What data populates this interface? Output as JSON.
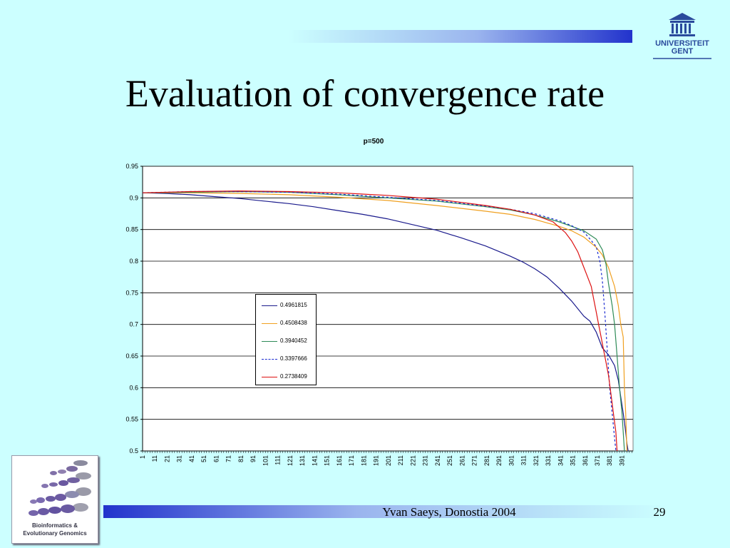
{
  "slide": {
    "title": "Evaluation of convergence rate",
    "footer": "Yvan Saeys, Donostia 2004",
    "page_number": "29"
  },
  "logos": {
    "university": "UNIVERSITEIT GENT",
    "group_line1": "Bioinformatics &",
    "group_line2": "Evolutionary Genomics"
  },
  "colors": {
    "background": "#ccffff",
    "bar_dark": "#2233cc"
  },
  "chart_data": {
    "type": "line",
    "title": "p=500",
    "xlabel": "",
    "ylabel": "",
    "ylim": [
      0.5,
      0.95
    ],
    "yticks": [
      "0.95",
      "0.9",
      "0.85",
      "0.8",
      "0.75",
      "0.7",
      "0.65",
      "0.6",
      "0.55",
      "0.5"
    ],
    "x_range": [
      1,
      400
    ],
    "xticks": [
      "1",
      "11",
      "21",
      "31",
      "41",
      "51",
      "61",
      "71",
      "81",
      "91",
      "101",
      "111",
      "121",
      "131",
      "141",
      "151",
      "161",
      "171",
      "181",
      "191",
      "201",
      "211",
      "221",
      "231",
      "241",
      "251",
      "261",
      "271",
      "281",
      "291",
      "301",
      "311",
      "321",
      "331",
      "341",
      "351",
      "361",
      "371",
      "381",
      "391"
    ],
    "grid": "horizontal",
    "legend_position": "inside-center-left",
    "series": [
      {
        "name": "0.4961815",
        "color": "#1a1a8c",
        "style": "solid",
        "points": [
          [
            1,
            0.908
          ],
          [
            20,
            0.907
          ],
          [
            40,
            0.905
          ],
          [
            60,
            0.902
          ],
          [
            80,
            0.899
          ],
          [
            100,
            0.895
          ],
          [
            120,
            0.891
          ],
          [
            140,
            0.886
          ],
          [
            160,
            0.88
          ],
          [
            180,
            0.874
          ],
          [
            200,
            0.867
          ],
          [
            220,
            0.858
          ],
          [
            240,
            0.849
          ],
          [
            260,
            0.837
          ],
          [
            280,
            0.824
          ],
          [
            300,
            0.808
          ],
          [
            310,
            0.799
          ],
          [
            320,
            0.788
          ],
          [
            330,
            0.775
          ],
          [
            340,
            0.757
          ],
          [
            350,
            0.737
          ],
          [
            360,
            0.713
          ],
          [
            365,
            0.705
          ],
          [
            370,
            0.688
          ],
          [
            375,
            0.663
          ],
          [
            380,
            0.652
          ],
          [
            385,
            0.635
          ],
          [
            388,
            0.612
          ],
          [
            390,
            0.585
          ],
          [
            392,
            0.56
          ],
          [
            394,
            0.53
          ],
          [
            395,
            0.512
          ],
          [
            396,
            0.5
          ]
        ]
      },
      {
        "name": "0.4508438",
        "color": "#f0a020",
        "style": "solid",
        "points": [
          [
            1,
            0.908
          ],
          [
            40,
            0.908
          ],
          [
            80,
            0.907
          ],
          [
            120,
            0.905
          ],
          [
            160,
            0.901
          ],
          [
            200,
            0.896
          ],
          [
            240,
            0.888
          ],
          [
            280,
            0.879
          ],
          [
            300,
            0.874
          ],
          [
            320,
            0.866
          ],
          [
            340,
            0.855
          ],
          [
            350,
            0.848
          ],
          [
            360,
            0.838
          ],
          [
            370,
            0.822
          ],
          [
            375,
            0.81
          ],
          [
            380,
            0.79
          ],
          [
            385,
            0.76
          ],
          [
            388,
            0.73
          ],
          [
            390,
            0.7
          ],
          [
            392,
            0.68
          ],
          [
            393,
            0.6
          ],
          [
            394,
            0.56
          ],
          [
            395,
            0.5
          ]
        ]
      },
      {
        "name": "0.3940452",
        "color": "#2e8b57",
        "style": "solid",
        "points": [
          [
            1,
            0.908
          ],
          [
            40,
            0.909
          ],
          [
            80,
            0.91
          ],
          [
            120,
            0.909
          ],
          [
            160,
            0.905
          ],
          [
            200,
            0.9
          ],
          [
            240,
            0.895
          ],
          [
            280,
            0.886
          ],
          [
            300,
            0.881
          ],
          [
            320,
            0.873
          ],
          [
            340,
            0.862
          ],
          [
            350,
            0.855
          ],
          [
            360,
            0.848
          ],
          [
            370,
            0.835
          ],
          [
            375,
            0.818
          ],
          [
            378,
            0.795
          ],
          [
            380,
            0.765
          ],
          [
            383,
            0.73
          ],
          [
            385,
            0.7
          ],
          [
            387,
            0.65
          ],
          [
            389,
            0.6
          ],
          [
            391,
            0.56
          ],
          [
            393,
            0.5
          ]
        ]
      },
      {
        "name": "0.3397666",
        "color": "#1a2ad0",
        "style": "dashed",
        "points": [
          [
            1,
            0.908
          ],
          [
            40,
            0.91
          ],
          [
            80,
            0.91
          ],
          [
            120,
            0.909
          ],
          [
            160,
            0.906
          ],
          [
            200,
            0.901
          ],
          [
            240,
            0.896
          ],
          [
            280,
            0.887
          ],
          [
            300,
            0.882
          ],
          [
            320,
            0.875
          ],
          [
            340,
            0.864
          ],
          [
            350,
            0.856
          ],
          [
            360,
            0.846
          ],
          [
            365,
            0.835
          ],
          [
            370,
            0.823
          ],
          [
            373,
            0.8
          ],
          [
            375,
            0.77
          ],
          [
            377,
            0.72
          ],
          [
            379,
            0.66
          ],
          [
            381,
            0.6
          ],
          [
            383,
            0.56
          ],
          [
            385,
            0.52
          ],
          [
            386,
            0.5
          ]
        ]
      },
      {
        "name": "0.2738409",
        "color": "#dd1111",
        "style": "solid",
        "points": [
          [
            1,
            0.908
          ],
          [
            40,
            0.91
          ],
          [
            80,
            0.911
          ],
          [
            120,
            0.91
          ],
          [
            160,
            0.908
          ],
          [
            200,
            0.904
          ],
          [
            240,
            0.898
          ],
          [
            280,
            0.888
          ],
          [
            300,
            0.882
          ],
          [
            320,
            0.873
          ],
          [
            335,
            0.862
          ],
          [
            345,
            0.845
          ],
          [
            350,
            0.832
          ],
          [
            355,
            0.815
          ],
          [
            358,
            0.8
          ],
          [
            362,
            0.78
          ],
          [
            366,
            0.76
          ],
          [
            368,
            0.74
          ],
          [
            370,
            0.72
          ],
          [
            372,
            0.7
          ],
          [
            374,
            0.68
          ],
          [
            376,
            0.66
          ],
          [
            378,
            0.64
          ],
          [
            380,
            0.62
          ],
          [
            382,
            0.59
          ],
          [
            384,
            0.56
          ],
          [
            386,
            0.53
          ],
          [
            387,
            0.5
          ]
        ]
      }
    ]
  }
}
